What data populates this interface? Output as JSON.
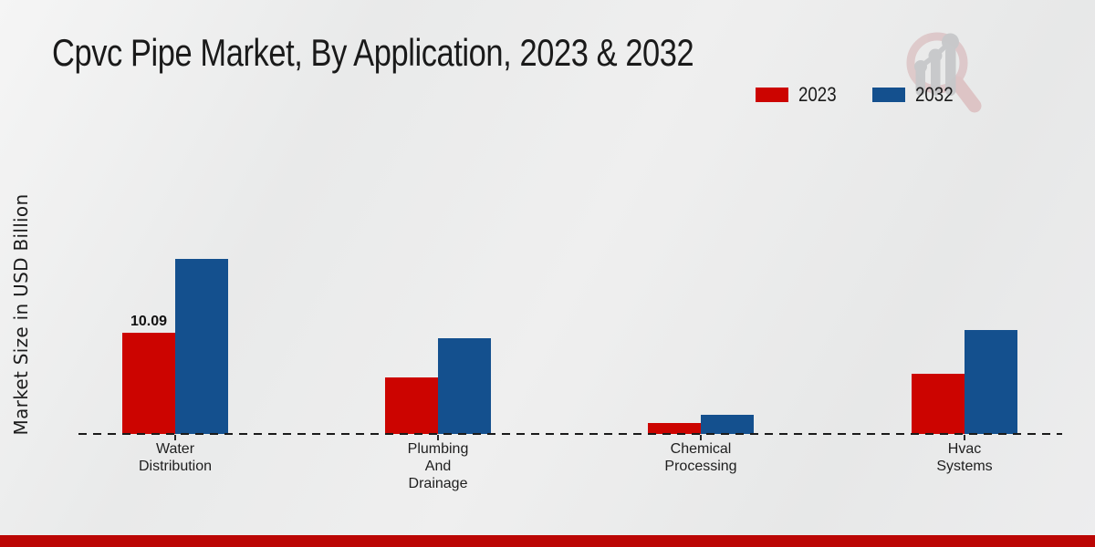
{
  "header": {
    "title": "Cpvc Pipe Market, By Application, 2023 & 2032"
  },
  "y_axis": {
    "label": "Market Size in USD Billion"
  },
  "legend": {
    "items": [
      {
        "label": "2023",
        "color": "#cc0400"
      },
      {
        "label": "2032",
        "color": "#14508e"
      }
    ]
  },
  "watermark": {
    "icon": "magnifier-bar-chart-logo",
    "circle_color": "#d9bcbe",
    "glyph_color": "#c7c8ca"
  },
  "footer": {
    "bar_color": "#bb0604"
  },
  "chart_data": {
    "type": "bar",
    "title": "Cpvc Pipe Market, By Application, 2023 & 2032",
    "ylabel": "Market Size in USD Billion",
    "xlabel": "",
    "units": "USD Billion",
    "categories": [
      "Water Distribution",
      "Plumbing And Drainage",
      "Chemical Processing",
      "Hvac Systems"
    ],
    "category_label_lines": [
      [
        "Water",
        "Distribution"
      ],
      [
        "Plumbing",
        "And",
        "Drainage"
      ],
      [
        "Chemical",
        "Processing"
      ],
      [
        "Hvac",
        "Systems"
      ]
    ],
    "series": [
      {
        "name": "2023",
        "color": "#cc0400",
        "values": [
          10.09,
          5.6,
          1.1,
          6.0
        ],
        "data_labels": [
          "10.09",
          "",
          "",
          ""
        ]
      },
      {
        "name": "2032",
        "color": "#14508e",
        "values": [
          17.4,
          9.5,
          1.9,
          10.35
        ],
        "data_labels": [
          "",
          "",
          "",
          ""
        ]
      }
    ],
    "ylim": [
      0,
      20
    ],
    "grid": false,
    "legend_position": "top-right",
    "x_baseline_style": "dashed"
  }
}
